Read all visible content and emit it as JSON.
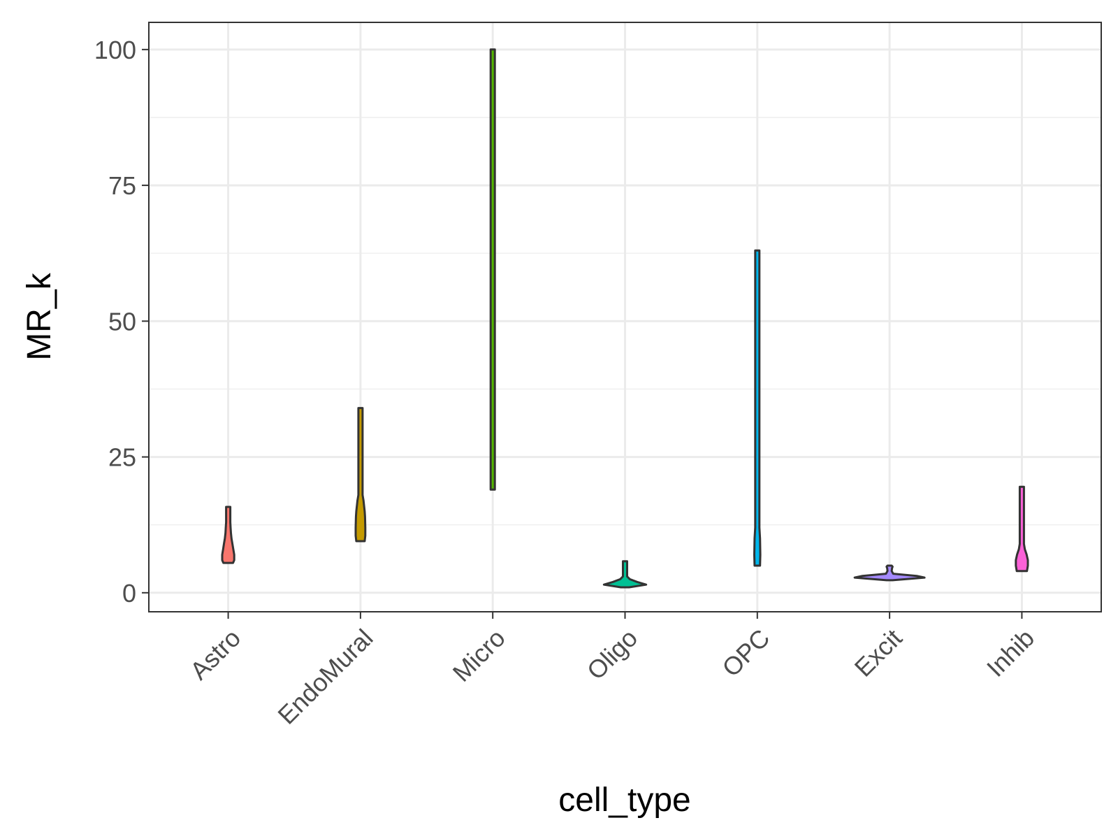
{
  "chart_data": {
    "type": "violin",
    "xlabel": "cell_type",
    "ylabel": "MR_k",
    "ylim": [
      -3.5,
      105
    ],
    "yticks": [
      0,
      25,
      50,
      75,
      100
    ],
    "categories": [
      "Astro",
      "EndoMural",
      "Micro",
      "Oligo",
      "OPC",
      "Excit",
      "Inhib"
    ],
    "violins": [
      {
        "category": "Astro",
        "fill": "#F8766D",
        "profile": [
          [
            5.5,
            0.8
          ],
          [
            6,
            1.0
          ],
          [
            7,
            1.0
          ],
          [
            8,
            0.85
          ],
          [
            9,
            0.7
          ],
          [
            10,
            0.55
          ],
          [
            11,
            0.45
          ],
          [
            12,
            0.4
          ],
          [
            13,
            0.35
          ],
          [
            14,
            0.35
          ],
          [
            15,
            0.35
          ],
          [
            15.8,
            0.25
          ]
        ]
      },
      {
        "category": "EndoMural",
        "fill": "#C49A00",
        "profile": [
          [
            9.5,
            0.7
          ],
          [
            10.5,
            0.8
          ],
          [
            12,
            0.8
          ],
          [
            14,
            0.75
          ],
          [
            15,
            0.7
          ],
          [
            17,
            0.5
          ],
          [
            18,
            0.3
          ],
          [
            20,
            0.18
          ],
          [
            23,
            0.12
          ],
          [
            26,
            0.12
          ],
          [
            28,
            0.08
          ],
          [
            30,
            0.08
          ],
          [
            34,
            0.06
          ]
        ]
      },
      {
        "category": "Micro",
        "fill": "#53B400",
        "profile": [
          [
            19,
            0.12
          ],
          [
            25,
            0.12
          ],
          [
            35,
            0.1
          ],
          [
            45,
            0.1
          ],
          [
            52,
            0.1
          ],
          [
            55,
            0.07
          ],
          [
            75,
            0.07
          ],
          [
            77,
            0.05
          ],
          [
            100,
            0.05
          ]
        ]
      },
      {
        "category": "Oligo",
        "fill": "#00C094",
        "profile": [
          [
            1,
            0.7
          ],
          [
            1.5,
            3.5
          ],
          [
            2,
            2.0
          ],
          [
            2.5,
            0.8
          ],
          [
            3,
            0.35
          ],
          [
            3.5,
            0.25
          ],
          [
            4,
            0.3
          ],
          [
            4.5,
            0.2
          ],
          [
            5,
            0.1
          ],
          [
            5.5,
            0.25
          ],
          [
            5.8,
            0.15
          ]
        ]
      },
      {
        "category": "OPC",
        "fill": "#00B6EB",
        "profile": [
          [
            5,
            0.45
          ],
          [
            7,
            0.5
          ],
          [
            10,
            0.45
          ],
          [
            12,
            0.35
          ],
          [
            14,
            0.2
          ],
          [
            16,
            0.18
          ],
          [
            18,
            0.12
          ],
          [
            25,
            0.1
          ],
          [
            40,
            0.1
          ],
          [
            50,
            0.08
          ],
          [
            55,
            0.06
          ],
          [
            63,
            0.05
          ]
        ]
      },
      {
        "category": "Excit",
        "fill": "#A58AFF",
        "profile": [
          [
            2.3,
            0.5
          ],
          [
            2.8,
            5.8
          ],
          [
            3.1,
            4.5
          ],
          [
            3.5,
            0.6
          ],
          [
            4,
            0.3
          ],
          [
            4.5,
            0.4
          ],
          [
            4.8,
            0.5
          ],
          [
            5,
            0.3
          ]
        ]
      },
      {
        "category": "Inhib",
        "fill": "#FB61D7",
        "profile": [
          [
            4,
            0.85
          ],
          [
            5,
            1.0
          ],
          [
            6,
            1.0
          ],
          [
            7,
            0.8
          ],
          [
            8,
            0.5
          ],
          [
            9,
            0.35
          ],
          [
            10,
            0.3
          ],
          [
            11,
            0.25
          ],
          [
            12,
            0.2
          ],
          [
            14,
            0.15
          ],
          [
            16,
            0.12
          ],
          [
            18,
            0.1
          ],
          [
            19.5,
            0.06
          ]
        ]
      }
    ]
  }
}
